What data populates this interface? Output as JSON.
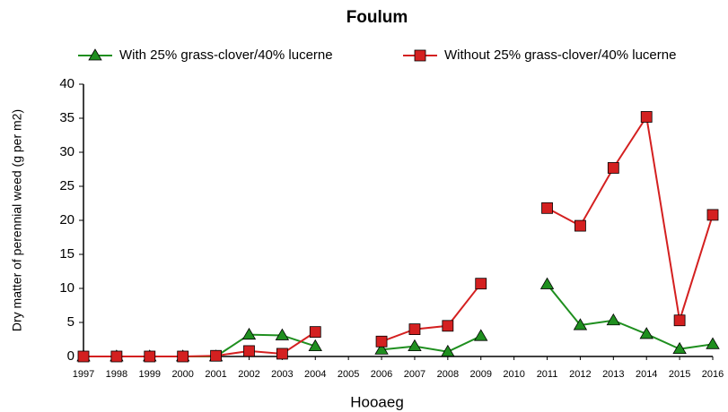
{
  "chart_data": {
    "type": "line",
    "title": "Foulum",
    "x_label": "Hooaeg",
    "y_label": "Dry matter of perennial weed (g per m2)",
    "categories": [
      "1997",
      "1998",
      "1999",
      "2000",
      "2001",
      "2002",
      "2003",
      "2004",
      "2005",
      "2006",
      "2007",
      "2008",
      "2009",
      "2010",
      "2011",
      "2012",
      "2013",
      "2014",
      "2015",
      "2016"
    ],
    "series": [
      {
        "name": "With 25% grass-clover/40% lucerne",
        "color": "#1f8f1f",
        "marker": "triangle",
        "values": [
          0,
          0,
          0,
          0,
          0,
          3.2,
          3.1,
          1.5,
          null,
          1.0,
          1.5,
          0.7,
          3.0,
          null,
          10.6,
          4.6,
          5.3,
          3.3,
          1.1,
          1.8
        ]
      },
      {
        "name": "Without 25% grass-clover/40% lucerne",
        "color": "#d42020",
        "marker": "square",
        "values": [
          0,
          0,
          0,
          0,
          0.1,
          0.8,
          0.4,
          3.6,
          null,
          2.2,
          4.0,
          4.5,
          10.7,
          null,
          21.8,
          19.2,
          27.7,
          35.2,
          5.3,
          20.8
        ]
      }
    ],
    "ylim": [
      0,
      40
    ],
    "yticks": [
      0,
      5,
      10,
      15,
      20,
      25,
      30,
      35,
      40
    ]
  }
}
